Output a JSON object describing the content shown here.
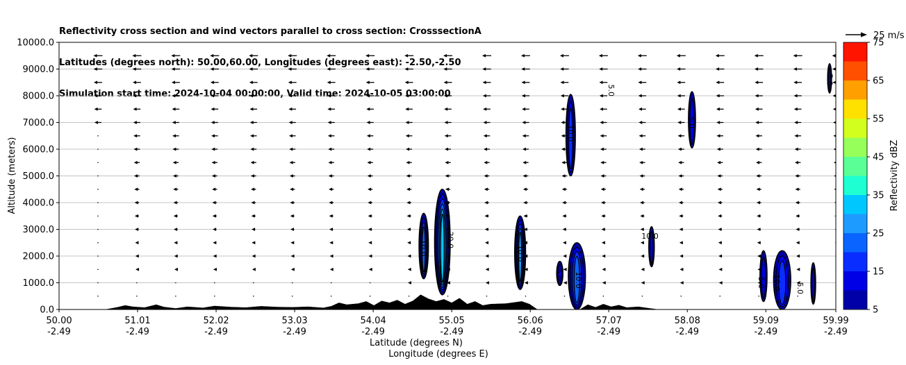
{
  "title_lines": [
    "Reflectivity cross section and wind vectors parallel to cross section: CrosssectionA",
    "Latitudes (degrees north): 50.00,60.00, Longitudes (degrees east): -2.50,-2.50",
    "Simulation start time: 2024-10-04 00:00:00, Valid time: 2024-10-05 03:00:00"
  ],
  "chart_data": {
    "type": "heatmap",
    "ylabel": "Altitude (meters)",
    "xlabel_lat": "Latitude (degrees N)",
    "xlabel_lon": "Longitude (degrees E)",
    "ylim": [
      0,
      10000
    ],
    "xlim": [
      50.0,
      59.99
    ],
    "y_ticks": [
      "0.0",
      "1000.0",
      "2000.0",
      "3000.0",
      "4000.0",
      "5000.0",
      "6000.0",
      "7000.0",
      "8000.0",
      "9000.0",
      "10000.0"
    ],
    "x_ticks": [
      {
        "lat": "50.00",
        "lon": "-2.49"
      },
      {
        "lat": "51.01",
        "lon": "-2.49"
      },
      {
        "lat": "52.02",
        "lon": "-2.49"
      },
      {
        "lat": "53.03",
        "lon": "-2.49"
      },
      {
        "lat": "54.04",
        "lon": "-2.49"
      },
      {
        "lat": "55.05",
        "lon": "-2.49"
      },
      {
        "lat": "56.06",
        "lon": "-2.49"
      },
      {
        "lat": "57.07",
        "lon": "-2.49"
      },
      {
        "lat": "58.08",
        "lon": "-2.49"
      },
      {
        "lat": "59.09",
        "lon": "-2.49"
      },
      {
        "lat": "59.99",
        "lon": "-2.49"
      }
    ],
    "grid": "horizontal",
    "colorbar": {
      "label": "Reflectivity dBZ",
      "levels": [
        5,
        10,
        15,
        20,
        25,
        30,
        35,
        40,
        45,
        50,
        55,
        60,
        65,
        70,
        75
      ],
      "tick_labels": [
        "5",
        "15",
        "25",
        "35",
        "45",
        "55",
        "65",
        "75"
      ],
      "colors": [
        "#0000a8",
        "#0000e6",
        "#0a2dff",
        "#0a64ff",
        "#1e9bff",
        "#00c8ff",
        "#1effd2",
        "#5aff96",
        "#96ff5a",
        "#d2ff1e",
        "#ffe100",
        "#ffa000",
        "#ff5000",
        "#ff1400",
        "#a80000"
      ]
    },
    "wind_key": "25 m/s",
    "contour_labels": [
      {
        "text": "10.0",
        "lat": 57.6,
        "alt": 2650
      },
      {
        "text": "5.0",
        "lat": 58.1,
        "alt": 7000
      },
      {
        "text": "5.0",
        "lat": 57.07,
        "alt": 8200
      },
      {
        "text": "5.0",
        "lat": 59.88,
        "alt": 8600
      },
      {
        "text": "10.0",
        "lat": 54.65,
        "alt": 2300
      },
      {
        "text": "20.0",
        "lat": 55.0,
        "alt": 2600
      },
      {
        "text": "10.0",
        "lat": 55.9,
        "alt": 2100
      },
      {
        "text": "5.0",
        "lat": 56.4,
        "alt": 1300
      },
      {
        "text": "10.0",
        "lat": 56.55,
        "alt": 6600
      },
      {
        "text": "10.0",
        "lat": 56.65,
        "alt": 1100
      },
      {
        "text": "5.0",
        "lat": 59.0,
        "alt": 1000
      },
      {
        "text": "10.0",
        "lat": 59.2,
        "alt": 1000
      },
      {
        "text": "5.0",
        "lat": 59.5,
        "alt": 800
      }
    ],
    "cells": [
      {
        "lat": 54.69,
        "bottom": 1150,
        "top": 3600,
        "w": 0.12,
        "max": 20
      },
      {
        "lat": 54.93,
        "bottom": 550,
        "top": 4500,
        "w": 0.2,
        "max": 30
      },
      {
        "lat": 55.93,
        "bottom": 750,
        "top": 3500,
        "w": 0.14,
        "max": 25
      },
      {
        "lat": 56.44,
        "bottom": 900,
        "top": 1800,
        "w": 0.08,
        "max": 10
      },
      {
        "lat": 56.66,
        "bottom": 0,
        "top": 2500,
        "w": 0.22,
        "max": 20
      },
      {
        "lat": 56.58,
        "bottom": 5000,
        "top": 8050,
        "w": 0.12,
        "max": 15
      },
      {
        "lat": 57.62,
        "bottom": 1600,
        "top": 3100,
        "w": 0.07,
        "max": 10
      },
      {
        "lat": 58.14,
        "bottom": 6050,
        "top": 8150,
        "w": 0.09,
        "max": 10
      },
      {
        "lat": 59.06,
        "bottom": 300,
        "top": 2200,
        "w": 0.09,
        "max": 10
      },
      {
        "lat": 59.3,
        "bottom": 0,
        "top": 2200,
        "w": 0.22,
        "max": 15
      },
      {
        "lat": 59.7,
        "bottom": 200,
        "top": 1750,
        "w": 0.06,
        "max": 10
      },
      {
        "lat": 59.91,
        "bottom": 8100,
        "top": 9200,
        "w": 0.05,
        "max": 10
      }
    ],
    "terrain": [
      [
        50.0,
        0
      ],
      [
        50.6,
        0
      ],
      [
        50.75,
        80
      ],
      [
        50.85,
        150
      ],
      [
        50.95,
        100
      ],
      [
        51.1,
        70
      ],
      [
        51.25,
        180
      ],
      [
        51.35,
        90
      ],
      [
        51.5,
        40
      ],
      [
        51.65,
        100
      ],
      [
        51.85,
        60
      ],
      [
        52.0,
        130
      ],
      [
        52.2,
        90
      ],
      [
        52.4,
        70
      ],
      [
        52.6,
        120
      ],
      [
        52.8,
        90
      ],
      [
        53.0,
        80
      ],
      [
        53.2,
        100
      ],
      [
        53.4,
        60
      ],
      [
        53.5,
        120
      ],
      [
        53.6,
        250
      ],
      [
        53.7,
        180
      ],
      [
        53.85,
        220
      ],
      [
        53.95,
        300
      ],
      [
        54.05,
        150
      ],
      [
        54.15,
        320
      ],
      [
        54.25,
        250
      ],
      [
        54.35,
        350
      ],
      [
        54.45,
        200
      ],
      [
        54.55,
        320
      ],
      [
        54.65,
        550
      ],
      [
        54.75,
        400
      ],
      [
        54.85,
        300
      ],
      [
        54.95,
        380
      ],
      [
        55.05,
        250
      ],
      [
        55.15,
        420
      ],
      [
        55.25,
        200
      ],
      [
        55.35,
        300
      ],
      [
        55.45,
        150
      ],
      [
        55.55,
        200
      ],
      [
        55.75,
        220
      ],
      [
        55.95,
        300
      ],
      [
        56.05,
        200
      ],
      [
        56.15,
        0
      ],
      [
        56.7,
        0
      ],
      [
        56.8,
        180
      ],
      [
        56.9,
        80
      ],
      [
        57.0,
        200
      ],
      [
        57.1,
        100
      ],
      [
        57.2,
        160
      ],
      [
        57.3,
        70
      ],
      [
        57.45,
        100
      ],
      [
        57.6,
        40
      ],
      [
        57.7,
        0
      ],
      [
        59.99,
        0
      ]
    ]
  }
}
